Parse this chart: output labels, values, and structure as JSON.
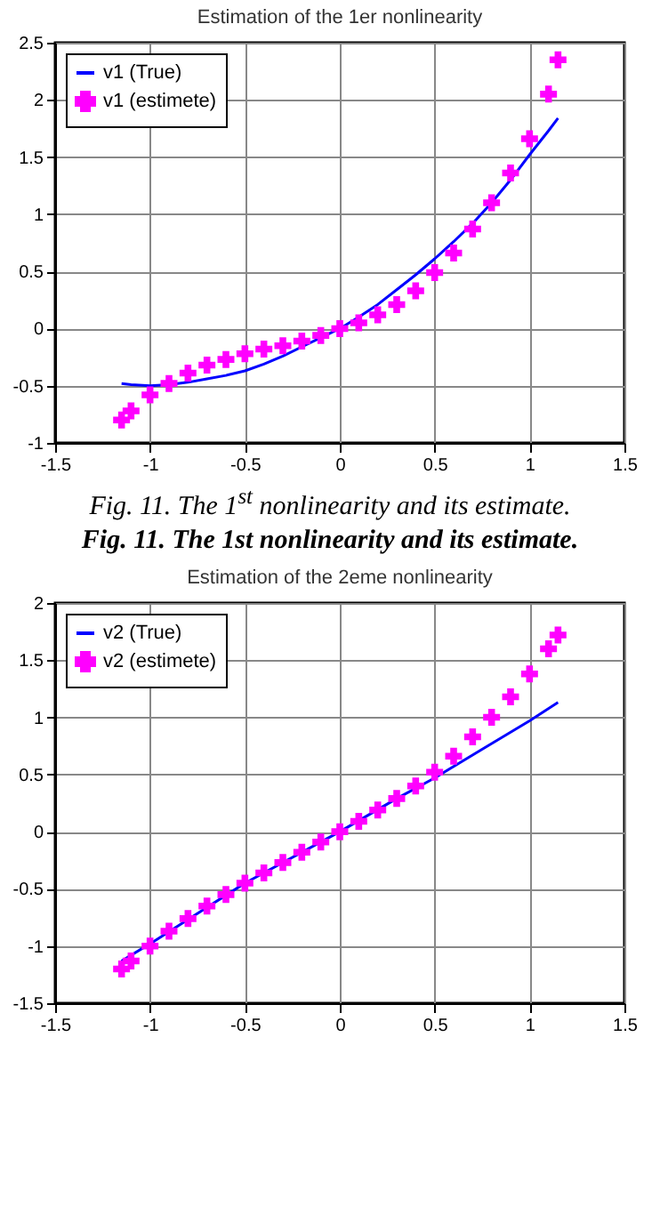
{
  "chart_data": [
    {
      "type": "line",
      "title": "Estimation of the 1er nonlinearity",
      "xlim": [
        -1.5,
        1.5
      ],
      "xticks": [
        -1.5,
        -1,
        -0.5,
        0,
        0.5,
        1,
        1.5
      ],
      "ylim": [
        -1,
        2.5
      ],
      "yticks": [
        -1,
        -0.5,
        0,
        0.5,
        1,
        1.5,
        2,
        2.5
      ],
      "grid": true,
      "legend": "top left",
      "annotations": [
        "Fig. 11. The 1$^{st}$ nonlinearity and its estimate.",
        "Fig. 11. The 1st nonlinearity and its estimate."
      ],
      "series": [
        {
          "name": "v1 (True)",
          "color": "#0000ff",
          "type": "line",
          "x": [
            -1.15,
            -1.1,
            -1.0,
            -0.9,
            -0.8,
            -0.7,
            -0.6,
            -0.5,
            -0.4,
            -0.3,
            -0.2,
            -0.1,
            0,
            0.1,
            0.2,
            0.3,
            0.4,
            0.5,
            0.6,
            0.7,
            0.8,
            0.9,
            1.0,
            1.1,
            1.15
          ],
          "values": [
            -0.48,
            -0.49,
            -0.5,
            -0.49,
            -0.47,
            -0.44,
            -0.41,
            -0.37,
            -0.31,
            -0.24,
            -0.16,
            -0.08,
            0,
            0.1,
            0.21,
            0.34,
            0.47,
            0.61,
            0.76,
            0.92,
            1.1,
            1.3,
            1.52,
            1.73,
            1.84
          ]
        },
        {
          "name": "v1 (estimete)",
          "color": "#ff00ff",
          "type": "scatter",
          "marker": "cross",
          "x": [
            -1.15,
            -1.1,
            -1.0,
            -0.9,
            -0.8,
            -0.7,
            -0.6,
            -0.5,
            -0.4,
            -0.3,
            -0.2,
            -0.1,
            0,
            0.1,
            0.2,
            0.3,
            0.4,
            0.5,
            0.6,
            0.7,
            0.8,
            0.9,
            1.0,
            1.1,
            1.15
          ],
          "values": [
            -0.8,
            -0.72,
            -0.58,
            -0.48,
            -0.39,
            -0.32,
            -0.27,
            -0.22,
            -0.18,
            -0.15,
            -0.11,
            -0.06,
            0,
            0.05,
            0.12,
            0.21,
            0.33,
            0.49,
            0.66,
            0.87,
            1.1,
            1.36,
            1.66,
            2.05,
            2.35
          ]
        }
      ]
    },
    {
      "type": "line",
      "title": "Estimation of the 2eme nonlinearity",
      "xlim": [
        -1.5,
        1.5
      ],
      "xticks": [
        -1.5,
        -1,
        -0.5,
        0,
        0.5,
        1,
        1.5
      ],
      "ylim": [
        -1.5,
        2
      ],
      "yticks": [
        -1.5,
        -1,
        -0.5,
        0,
        0.5,
        1,
        1.5,
        2
      ],
      "grid": true,
      "legend": "top left",
      "series": [
        {
          "name": "v2 (True)",
          "color": "#0000ff",
          "type": "line",
          "x": [
            -1.15,
            -1.0,
            -0.5,
            0,
            0.3,
            0.5,
            0.75,
            1.0,
            1.15
          ],
          "values": [
            -1.13,
            -0.98,
            -0.45,
            0,
            0.29,
            0.47,
            0.72,
            0.97,
            1.13
          ]
        },
        {
          "name": "v2 (estimete)",
          "color": "#ff00ff",
          "type": "scatter",
          "marker": "cross",
          "x": [
            -1.15,
            -1.1,
            -1.0,
            -0.9,
            -0.8,
            -0.7,
            -0.6,
            -0.5,
            -0.4,
            -0.3,
            -0.2,
            -0.1,
            0,
            0.1,
            0.2,
            0.3,
            0.4,
            0.5,
            0.6,
            0.7,
            0.8,
            0.9,
            1.0,
            1.1,
            1.15
          ],
          "values": [
            -1.2,
            -1.13,
            -1.0,
            -0.87,
            -0.76,
            -0.65,
            -0.55,
            -0.45,
            -0.36,
            -0.27,
            -0.18,
            -0.09,
            0,
            0.09,
            0.19,
            0.29,
            0.4,
            0.52,
            0.66,
            0.83,
            1.0,
            1.18,
            1.38,
            1.6,
            1.72
          ]
        }
      ]
    }
  ]
}
